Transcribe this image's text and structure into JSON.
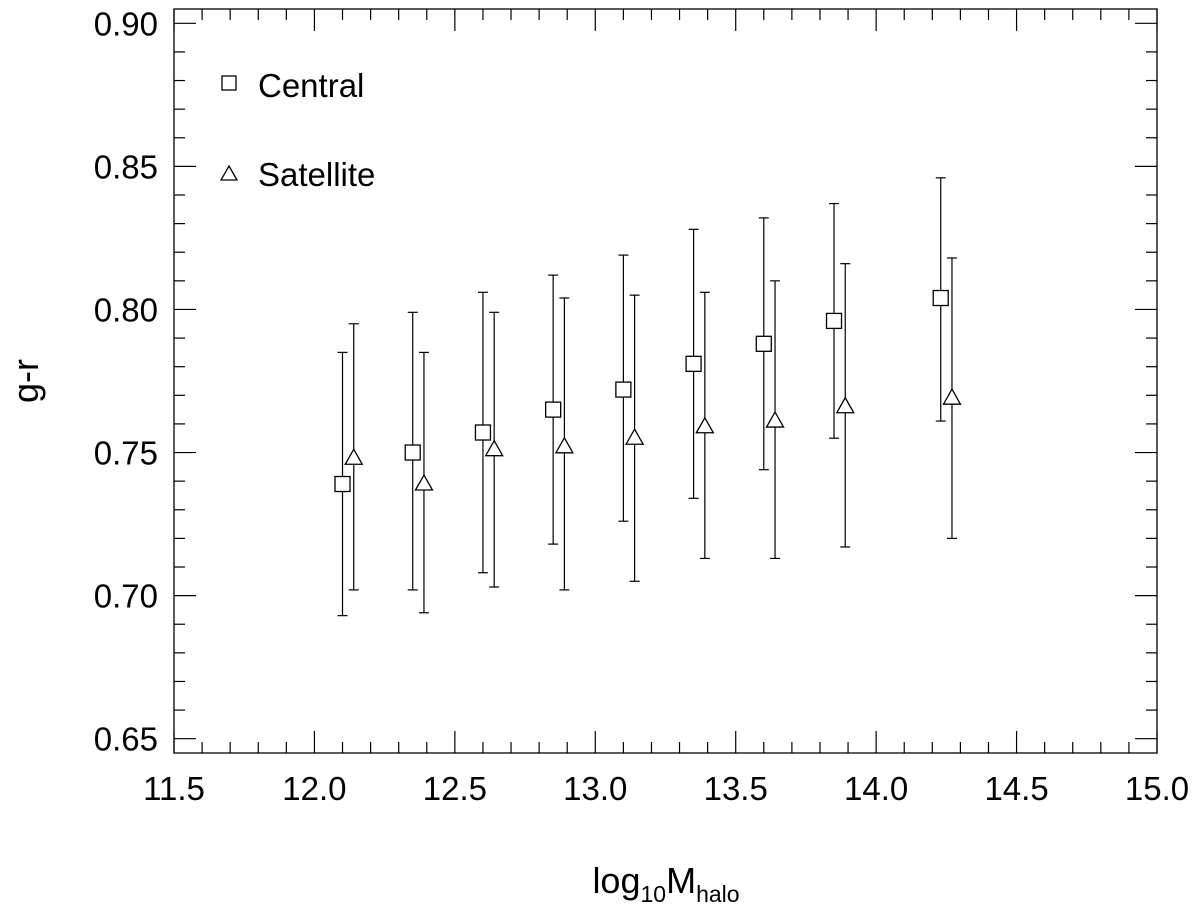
{
  "chart_data": {
    "type": "scatter",
    "title": "",
    "xlabel": {
      "base": "log",
      "sub1": "10",
      "mid": "M",
      "sub2": "halo"
    },
    "ylabel": "g-r",
    "xlim": [
      11.5,
      15.0
    ],
    "ylim": [
      0.645,
      0.905
    ],
    "x_ticks": [
      "11.5",
      "12.0",
      "12.5",
      "13.0",
      "13.5",
      "14.0",
      "14.5",
      "15.0"
    ],
    "y_ticks": [
      "0.65",
      "0.70",
      "0.75",
      "0.80",
      "0.85",
      "0.90"
    ],
    "grid": false,
    "legend_position": "top-left",
    "series": [
      {
        "name": "Central",
        "marker": "square",
        "x": [
          12.1,
          12.35,
          12.6,
          12.85,
          13.1,
          13.35,
          13.6,
          13.85,
          14.23
        ],
        "y": [
          0.739,
          0.75,
          0.757,
          0.765,
          0.772,
          0.781,
          0.788,
          0.796,
          0.804
        ],
        "err_low": [
          0.693,
          0.702,
          0.708,
          0.718,
          0.726,
          0.734,
          0.744,
          0.755,
          0.761
        ],
        "err_high": [
          0.785,
          0.799,
          0.806,
          0.812,
          0.819,
          0.828,
          0.832,
          0.837,
          0.846
        ]
      },
      {
        "name": "Satellite",
        "marker": "triangle",
        "x": [
          12.14,
          12.39,
          12.64,
          12.89,
          13.14,
          13.39,
          13.64,
          13.89,
          14.27
        ],
        "y": [
          0.748,
          0.739,
          0.751,
          0.752,
          0.755,
          0.759,
          0.761,
          0.766,
          0.769
        ],
        "err_low": [
          0.702,
          0.694,
          0.703,
          0.702,
          0.705,
          0.713,
          0.713,
          0.717,
          0.72
        ],
        "err_high": [
          0.795,
          0.785,
          0.799,
          0.804,
          0.805,
          0.806,
          0.81,
          0.816,
          0.818
        ]
      }
    ]
  }
}
